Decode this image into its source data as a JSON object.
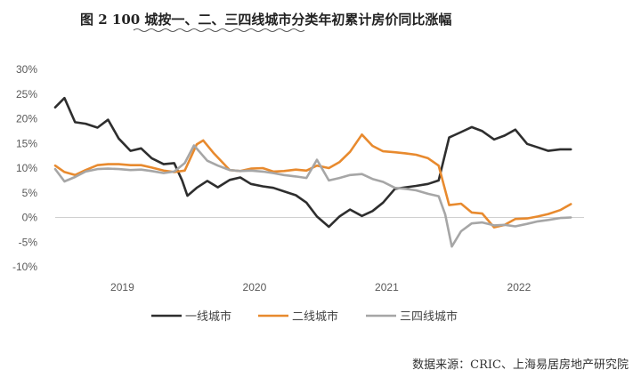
{
  "chart_data": {
    "type": "line",
    "title": "图 2    100 城按一、二、三四线城市分类年初累计房价同比涨幅",
    "source": "数据来源：CRIC、上海易居房地产研究院",
    "ylim": [
      -10,
      30
    ],
    "y_ticks": [
      "30%",
      "25%",
      "20%",
      "15%",
      "10%",
      "5%",
      "0%",
      "-5%",
      "-10%"
    ],
    "x_range": [
      2018.6,
      2022.6
    ],
    "x_ticks": [
      {
        "label": "2019",
        "x": 2019.0
      },
      {
        "label": "2020",
        "x": 2020.0
      },
      {
        "label": "2021",
        "x": 2021.0
      },
      {
        "label": "2022",
        "x": 2022.0
      }
    ],
    "grid": false,
    "legend_position": "bottom",
    "colors": {
      "tier1": "#2e2e2e",
      "tier2": "#e88a2e",
      "tier34": "#a6a6a6",
      "axis": "#d0d0d0"
    },
    "series": [
      {
        "name": "一线城市",
        "color": "#2e2e2e",
        "points": [
          [
            2018.6,
            22.3
          ],
          [
            2018.67,
            24.2
          ],
          [
            2018.75,
            19.3
          ],
          [
            2018.83,
            19.0
          ],
          [
            2018.92,
            18.2
          ],
          [
            2019.0,
            19.8
          ],
          [
            2019.08,
            16.0
          ],
          [
            2019.17,
            13.5
          ],
          [
            2019.25,
            14.0
          ],
          [
            2019.33,
            12.0
          ],
          [
            2019.42,
            10.8
          ],
          [
            2019.5,
            11.0
          ],
          [
            2019.56,
            7.5
          ],
          [
            2019.6,
            4.4
          ],
          [
            2019.67,
            6.0
          ],
          [
            2019.75,
            7.4
          ],
          [
            2019.83,
            6.1
          ],
          [
            2019.92,
            7.6
          ],
          [
            2020.0,
            8.1
          ],
          [
            2020.08,
            6.8
          ],
          [
            2020.17,
            6.3
          ],
          [
            2020.25,
            6.0
          ],
          [
            2020.33,
            5.3
          ],
          [
            2020.42,
            4.5
          ],
          [
            2020.5,
            3.0
          ],
          [
            2020.58,
            0.2
          ],
          [
            2020.67,
            -1.9
          ],
          [
            2020.75,
            0.2
          ],
          [
            2020.83,
            1.6
          ],
          [
            2020.92,
            0.3
          ],
          [
            2021.0,
            1.3
          ],
          [
            2021.08,
            3.0
          ],
          [
            2021.17,
            5.8
          ],
          [
            2021.25,
            6.1
          ],
          [
            2021.33,
            6.4
          ],
          [
            2021.42,
            6.8
          ],
          [
            2021.5,
            7.5
          ],
          [
            2021.58,
            16.2
          ],
          [
            2021.67,
            17.3
          ],
          [
            2021.75,
            18.3
          ],
          [
            2021.83,
            17.5
          ],
          [
            2021.92,
            15.8
          ],
          [
            2022.0,
            16.6
          ],
          [
            2022.08,
            17.8
          ],
          [
            2022.17,
            14.9
          ],
          [
            2022.25,
            14.2
          ],
          [
            2022.33,
            13.5
          ],
          [
            2022.42,
            13.8
          ],
          [
            2022.5,
            13.8
          ]
        ]
      },
      {
        "name": "二线城市",
        "color": "#e88a2e",
        "points": [
          [
            2018.6,
            10.5
          ],
          [
            2018.67,
            9.2
          ],
          [
            2018.75,
            8.6
          ],
          [
            2018.83,
            9.6
          ],
          [
            2018.92,
            10.6
          ],
          [
            2019.0,
            10.8
          ],
          [
            2019.08,
            10.8
          ],
          [
            2019.17,
            10.6
          ],
          [
            2019.25,
            10.6
          ],
          [
            2019.33,
            10.1
          ],
          [
            2019.42,
            9.5
          ],
          [
            2019.5,
            9.2
          ],
          [
            2019.58,
            9.5
          ],
          [
            2019.67,
            14.8
          ],
          [
            2019.72,
            15.6
          ],
          [
            2019.8,
            13.0
          ],
          [
            2019.92,
            9.6
          ],
          [
            2020.0,
            9.4
          ],
          [
            2020.08,
            9.9
          ],
          [
            2020.17,
            10.0
          ],
          [
            2020.25,
            9.3
          ],
          [
            2020.33,
            9.4
          ],
          [
            2020.42,
            9.7
          ],
          [
            2020.5,
            9.5
          ],
          [
            2020.58,
            10.5
          ],
          [
            2020.67,
            10.0
          ],
          [
            2020.75,
            11.2
          ],
          [
            2020.83,
            13.3
          ],
          [
            2020.92,
            16.8
          ],
          [
            2021.0,
            14.5
          ],
          [
            2021.08,
            13.4
          ],
          [
            2021.17,
            13.2
          ],
          [
            2021.25,
            13.0
          ],
          [
            2021.33,
            12.7
          ],
          [
            2021.42,
            12.0
          ],
          [
            2021.5,
            10.5
          ],
          [
            2021.58,
            2.5
          ],
          [
            2021.67,
            2.8
          ],
          [
            2021.75,
            1.0
          ],
          [
            2021.83,
            0.8
          ],
          [
            2021.92,
            -2.0
          ],
          [
            2022.0,
            -1.5
          ],
          [
            2022.08,
            -0.3
          ],
          [
            2022.17,
            -0.2
          ],
          [
            2022.25,
            0.2
          ],
          [
            2022.33,
            0.7
          ],
          [
            2022.42,
            1.5
          ],
          [
            2022.5,
            2.7
          ]
        ]
      },
      {
        "name": "三四线城市",
        "color": "#a6a6a6",
        "points": [
          [
            2018.6,
            9.8
          ],
          [
            2018.67,
            7.3
          ],
          [
            2018.75,
            8.2
          ],
          [
            2018.83,
            9.3
          ],
          [
            2018.92,
            9.8
          ],
          [
            2019.0,
            9.9
          ],
          [
            2019.08,
            9.8
          ],
          [
            2019.17,
            9.6
          ],
          [
            2019.25,
            9.7
          ],
          [
            2019.33,
            9.4
          ],
          [
            2019.42,
            9.0
          ],
          [
            2019.5,
            9.3
          ],
          [
            2019.58,
            11.0
          ],
          [
            2019.65,
            14.6
          ],
          [
            2019.75,
            11.5
          ],
          [
            2019.83,
            10.5
          ],
          [
            2019.92,
            9.6
          ],
          [
            2020.0,
            9.4
          ],
          [
            2020.08,
            9.5
          ],
          [
            2020.17,
            9.3
          ],
          [
            2020.25,
            9.0
          ],
          [
            2020.33,
            8.6
          ],
          [
            2020.42,
            8.3
          ],
          [
            2020.5,
            8.0
          ],
          [
            2020.58,
            11.7
          ],
          [
            2020.67,
            7.5
          ],
          [
            2020.75,
            8.0
          ],
          [
            2020.83,
            8.6
          ],
          [
            2020.92,
            8.8
          ],
          [
            2021.0,
            7.8
          ],
          [
            2021.08,
            7.2
          ],
          [
            2021.17,
            6.0
          ],
          [
            2021.25,
            5.8
          ],
          [
            2021.33,
            5.5
          ],
          [
            2021.42,
            4.8
          ],
          [
            2021.5,
            4.3
          ],
          [
            2021.55,
            0.6
          ],
          [
            2021.6,
            -5.9
          ],
          [
            2021.67,
            -2.8
          ],
          [
            2021.75,
            -1.2
          ],
          [
            2021.83,
            -1.0
          ],
          [
            2021.92,
            -1.6
          ],
          [
            2022.0,
            -1.5
          ],
          [
            2022.08,
            -1.8
          ],
          [
            2022.17,
            -1.3
          ],
          [
            2022.25,
            -0.8
          ],
          [
            2022.33,
            -0.5
          ],
          [
            2022.42,
            -0.1
          ],
          [
            2022.5,
            0.0
          ]
        ]
      }
    ]
  }
}
